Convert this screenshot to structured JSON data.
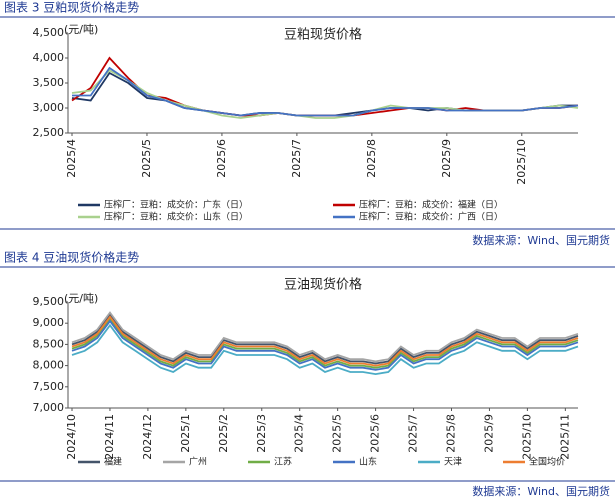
{
  "chart_data": [
    {
      "type": "line",
      "caption": "图表 3 豆粕现货价格走势",
      "title": "豆粕现货价格",
      "y_label": "(元/吨)",
      "source": "数据来源：Wind、国元期货",
      "categories": [
        "2025/4",
        null,
        null,
        null,
        "2025/5",
        null,
        null,
        null,
        "2025/6",
        null,
        null,
        null,
        "2025/7",
        null,
        null,
        null,
        "2025/8",
        null,
        null,
        null,
        "2025/9",
        null,
        null,
        null,
        "2025/10",
        null,
        null,
        null
      ],
      "ylim": [
        2500,
        4500
      ],
      "yticks": [
        {
          "value": 2500,
          "label": "2,500"
        },
        {
          "value": 3000,
          "label": "3,000"
        },
        {
          "value": 3500,
          "label": "3,500"
        },
        {
          "value": 4000,
          "label": "4,000"
        },
        {
          "value": 4500,
          "label": "4,500"
        }
      ],
      "legend": "bottom",
      "legend_columns": 2,
      "series": [
        {
          "name": "压榨厂：豆粕：成交价：广东（日）",
          "color": "#1f3864",
          "values": [
            3200,
            3150,
            3700,
            3500,
            3200,
            3150,
            3000,
            2950,
            2900,
            2850,
            2900,
            2900,
            2850,
            2850,
            2850,
            2900,
            2950,
            3000,
            3000,
            2950,
            3000,
            2950,
            2950,
            2950,
            2950,
            3000,
            3050,
            3050
          ]
        },
        {
          "name": "压榨厂：豆粕：成交价：福建（日）",
          "color": "#c00000",
          "values": [
            3150,
            3400,
            4000,
            3600,
            3250,
            3200,
            3050,
            2950,
            2900,
            2850,
            2850,
            2900,
            2850,
            2850,
            2850,
            2850,
            2900,
            2950,
            3000,
            3000,
            2950,
            3000,
            2950,
            2950,
            2950,
            3000,
            3000,
            3050
          ]
        },
        {
          "name": "压榨厂：豆粕：成交价：山东（日）",
          "color": "#a9d18e",
          "values": [
            3300,
            3350,
            3750,
            3550,
            3300,
            3150,
            3050,
            2950,
            2850,
            2800,
            2850,
            2900,
            2850,
            2800,
            2800,
            2850,
            2950,
            3050,
            3000,
            3000,
            3000,
            2950,
            2950,
            2950,
            2950,
            3000,
            3050,
            3000
          ]
        },
        {
          "name": "压榨厂：豆粕：成交价：广西（日）",
          "color": "#4472c4",
          "values": [
            3250,
            3250,
            3800,
            3550,
            3250,
            3150,
            3000,
            2950,
            2900,
            2850,
            2900,
            2900,
            2850,
            2850,
            2850,
            2850,
            2950,
            3000,
            3000,
            3000,
            2950,
            2950,
            2950,
            2950,
            2950,
            3000,
            3000,
            3050
          ]
        }
      ]
    },
    {
      "type": "line",
      "caption": "图表 4 豆油现货价格走势",
      "title": "豆油现货价格",
      "y_label": "(元/吨)",
      "source": "数据来源：Wind、国元期货",
      "categories": [
        "2024/10",
        null,
        null,
        "2024/11",
        null,
        null,
        "2024/12",
        null,
        null,
        "2025/1",
        null,
        null,
        "2025/2",
        null,
        null,
        "2025/3",
        null,
        null,
        "2025/4",
        null,
        null,
        "2025/5",
        null,
        null,
        "2025/6",
        null,
        null,
        "2025/7",
        null,
        null,
        "2025/8",
        null,
        null,
        "2025/9",
        null,
        null,
        "2025/10",
        null,
        null,
        "2025/11",
        null
      ],
      "ylim": [
        7000,
        9500
      ],
      "yticks": [
        {
          "value": 7000,
          "label": "7,000"
        },
        {
          "value": 7500,
          "label": "7,500"
        },
        {
          "value": 8000,
          "label": "8,000"
        },
        {
          "value": 8500,
          "label": "8,500"
        },
        {
          "value": 9000,
          "label": "9,000"
        },
        {
          "value": 9500,
          "label": "9,500"
        }
      ],
      "legend": "bottom",
      "legend_columns": 6,
      "series": [
        {
          "name": "福建",
          "color": "#44546a",
          "values": [
            8500,
            8600,
            8800,
            9200,
            8800,
            8600,
            8400,
            8200,
            8100,
            8300,
            8200,
            8200,
            8600,
            8500,
            8500,
            8500,
            8500,
            8400,
            8200,
            8300,
            8100,
            8200,
            8100,
            8100,
            8050,
            8100,
            8400,
            8200,
            8300,
            8300,
            8500,
            8600,
            8800,
            8700,
            8600,
            8600,
            8400,
            8600,
            8600,
            8600,
            8700
          ]
        },
        {
          "name": "广州",
          "color": "#a5a5a5",
          "values": [
            8550,
            8650,
            8850,
            9250,
            8850,
            8650,
            8450,
            8250,
            8150,
            8350,
            8250,
            8250,
            8650,
            8550,
            8550,
            8550,
            8550,
            8450,
            8250,
            8350,
            8150,
            8250,
            8150,
            8150,
            8100,
            8150,
            8450,
            8250,
            8350,
            8350,
            8550,
            8650,
            8850,
            8750,
            8650,
            8650,
            8450,
            8650,
            8650,
            8650,
            8750
          ]
        },
        {
          "name": "江苏",
          "color": "#70ad47",
          "values": [
            8400,
            8500,
            8700,
            9100,
            8700,
            8500,
            8300,
            8100,
            8000,
            8200,
            8100,
            8100,
            8500,
            8400,
            8400,
            8400,
            8400,
            8300,
            8100,
            8200,
            8000,
            8100,
            8000,
            8000,
            7950,
            8000,
            8300,
            8100,
            8200,
            8200,
            8400,
            8500,
            8700,
            8600,
            8500,
            8500,
            8300,
            8500,
            8500,
            8500,
            8600
          ]
        },
        {
          "name": "山东",
          "color": "#4472c4",
          "values": [
            8350,
            8450,
            8650,
            9050,
            8650,
            8450,
            8250,
            8050,
            7950,
            8150,
            8050,
            8050,
            8450,
            8350,
            8350,
            8350,
            8350,
            8250,
            8050,
            8150,
            7950,
            8050,
            7950,
            7950,
            7900,
            7950,
            8250,
            8050,
            8150,
            8150,
            8350,
            8450,
            8650,
            8550,
            8450,
            8450,
            8250,
            8450,
            8450,
            8450,
            8550
          ]
        },
        {
          "name": "天津",
          "color": "#4bacc6",
          "values": [
            8250,
            8350,
            8550,
            8950,
            8550,
            8350,
            8150,
            7950,
            7850,
            8050,
            7950,
            7950,
            8350,
            8250,
            8250,
            8250,
            8250,
            8150,
            7950,
            8050,
            7850,
            7950,
            7850,
            7850,
            7800,
            7850,
            8150,
            7950,
            8050,
            8050,
            8250,
            8350,
            8550,
            8450,
            8350,
            8350,
            8150,
            8350,
            8350,
            8350,
            8450
          ]
        },
        {
          "name": "全国均价",
          "color": "#ed7d31",
          "values": [
            8450,
            8550,
            8750,
            9150,
            8750,
            8550,
            8350,
            8150,
            8050,
            8250,
            8150,
            8150,
            8550,
            8450,
            8450,
            8450,
            8450,
            8350,
            8150,
            8250,
            8050,
            8150,
            8050,
            8050,
            8000,
            8050,
            8350,
            8150,
            8250,
            8250,
            8450,
            8550,
            8750,
            8650,
            8550,
            8550,
            8350,
            8550,
            8550,
            8550,
            8650
          ]
        }
      ]
    }
  ]
}
